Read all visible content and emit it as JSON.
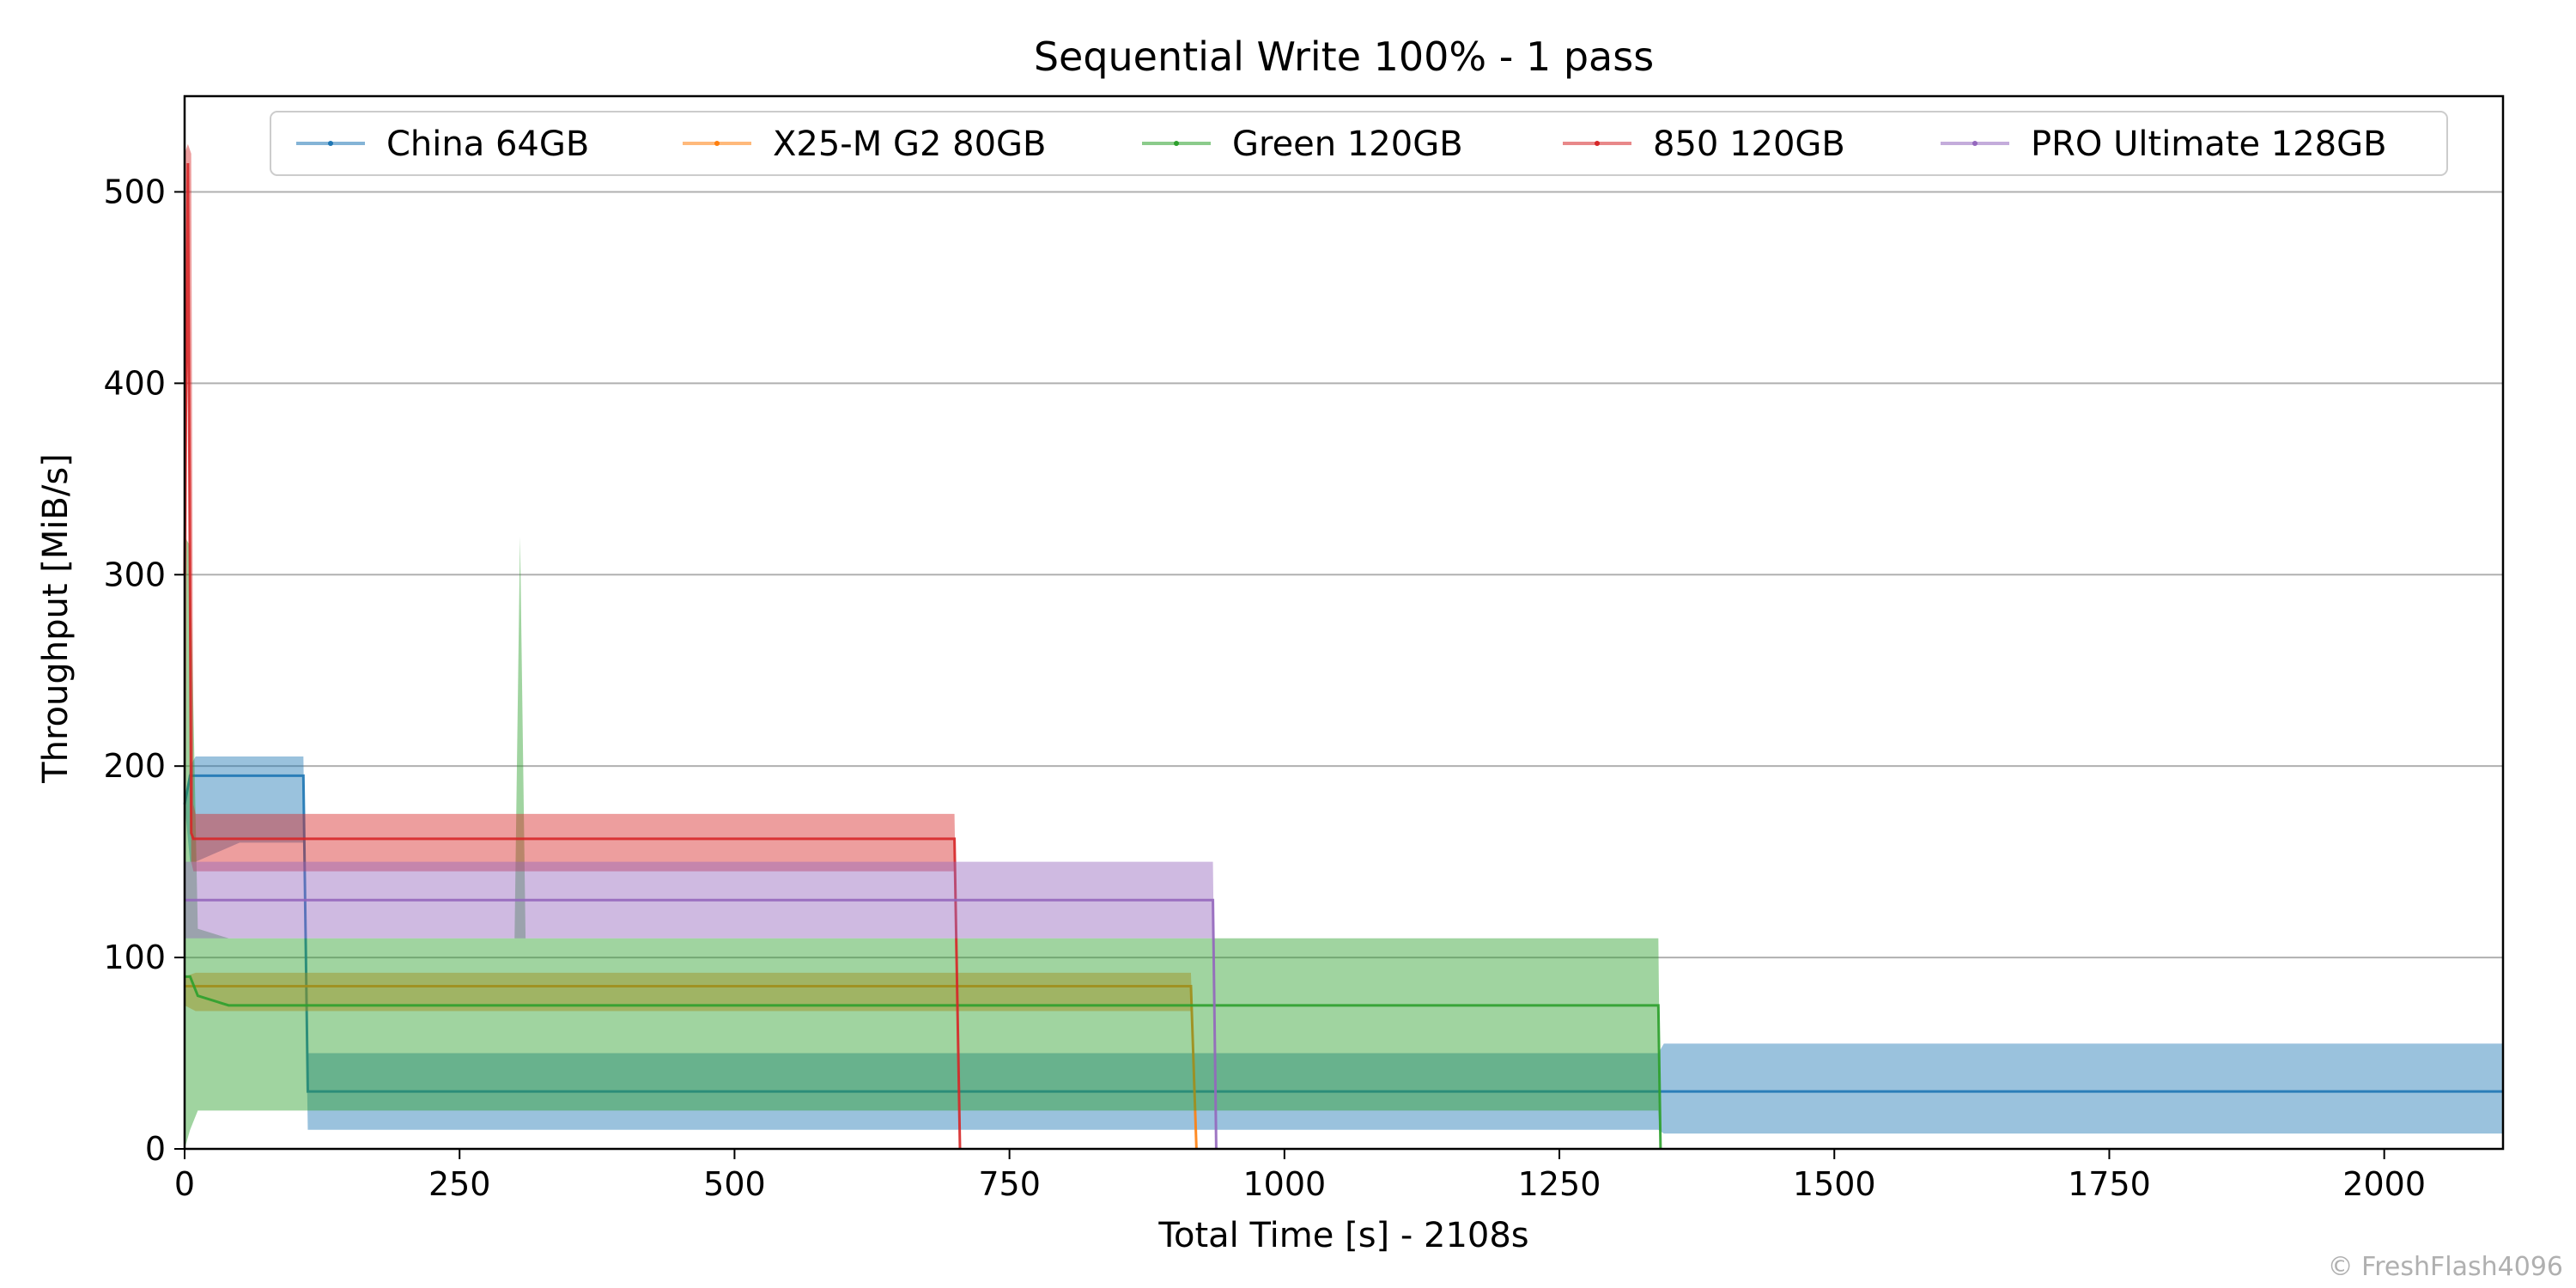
{
  "chart_data": {
    "type": "area",
    "title": "Sequential Write 100% - 1 pass",
    "xlabel": "Total Time [s] - 2108s",
    "ylabel": "Throughput [MiB/s]",
    "xlim": [
      0,
      2108
    ],
    "ylim": [
      0,
      550
    ],
    "xticks": [
      0,
      250,
      500,
      750,
      1000,
      1250,
      1500,
      1750,
      2000
    ],
    "yticks": [
      0,
      100,
      200,
      300,
      400,
      500
    ],
    "grid": "horizontal",
    "legend_position": "top-center",
    "series": [
      {
        "name": "China 64GB",
        "color": "#1f77b4",
        "x": [
          0,
          5,
          10,
          50,
          108,
          112,
          250,
          500,
          750,
          1000,
          1250,
          1340,
          1345,
          1500,
          1750,
          2000,
          2108
        ],
        "upper": [
          180,
          200,
          205,
          205,
          205,
          50,
          50,
          50,
          50,
          50,
          50,
          50,
          55,
          55,
          55,
          55,
          55
        ],
        "lower": [
          180,
          150,
          150,
          160,
          160,
          10,
          10,
          10,
          10,
          10,
          10,
          10,
          8,
          8,
          8,
          8,
          8
        ],
        "mean": [
          180,
          195,
          195,
          195,
          195,
          30,
          30,
          30,
          30,
          30,
          30,
          30,
          30,
          30,
          30,
          30,
          30
        ]
      },
      {
        "name": "X25-M G2 80GB",
        "color": "#ff7f0e",
        "x": [
          0,
          10,
          100,
          250,
          500,
          750,
          915,
          920
        ],
        "upper": [
          90,
          92,
          92,
          92,
          92,
          92,
          92,
          0
        ],
        "lower": [
          75,
          72,
          72,
          72,
          72,
          72,
          72,
          0
        ],
        "mean": [
          85,
          85,
          85,
          85,
          85,
          85,
          85,
          0
        ]
      },
      {
        "name": "Green 120GB",
        "color": "#2ca02c",
        "x": [
          0,
          5,
          12,
          40,
          100,
          250,
          300,
          305,
          310,
          500,
          750,
          1000,
          1250,
          1340,
          1342
        ],
        "upper": [
          320,
          315,
          115,
          110,
          110,
          110,
          110,
          320,
          110,
          110,
          110,
          110,
          110,
          110,
          0
        ],
        "lower": [
          0,
          10,
          20,
          20,
          20,
          20,
          20,
          20,
          20,
          20,
          20,
          20,
          20,
          20,
          0
        ],
        "mean": [
          90,
          90,
          80,
          75,
          75,
          75,
          75,
          75,
          75,
          75,
          75,
          75,
          75,
          75,
          0
        ]
      },
      {
        "name": "850 120GB",
        "color": "#d62728",
        "x": [
          0,
          3,
          6,
          8,
          10,
          100,
          250,
          500,
          700,
          705
        ],
        "upper": [
          520,
          525,
          520,
          180,
          175,
          175,
          175,
          175,
          175,
          0
        ],
        "lower": [
          0,
          500,
          150,
          145,
          145,
          145,
          145,
          145,
          145,
          0
        ],
        "mean": [
          300,
          515,
          165,
          162,
          162,
          162,
          162,
          162,
          162,
          0
        ]
      },
      {
        "name": "PRO Ultimate 128GB",
        "color": "#9467bd",
        "x": [
          0,
          10,
          250,
          500,
          750,
          935,
          938
        ],
        "upper": [
          150,
          150,
          150,
          150,
          150,
          150,
          0
        ],
        "lower": [
          110,
          110,
          110,
          110,
          110,
          110,
          0
        ],
        "mean": [
          130,
          130,
          130,
          130,
          130,
          130,
          0
        ]
      }
    ]
  },
  "watermark": "© FreshFlash4096"
}
